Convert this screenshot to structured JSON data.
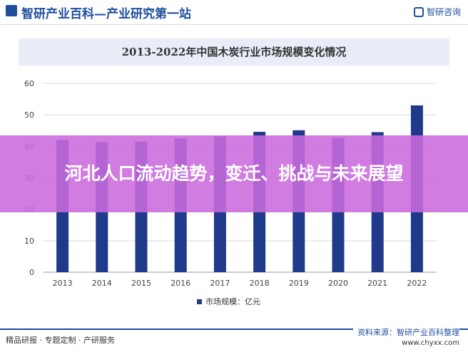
{
  "header": {
    "title": "智研产业百科—产业研究第一站",
    "brand": "智研咨询"
  },
  "overlay": {
    "headline": "河北人口流动趋势，变迁、挑战与未来展望"
  },
  "footer": {
    "left": "精品研报 · 专题定制 · 产研服务",
    "source": "资料来源：智研产业百科整理",
    "url": "www.chyxx.com"
  },
  "chart_data": {
    "type": "bar",
    "title": "2013-2022年中国木炭行业市场规模变化情况",
    "categories": [
      "2013",
      "2014",
      "2015",
      "2016",
      "2017",
      "2018",
      "2019",
      "2020",
      "2021",
      "2022"
    ],
    "series": [
      {
        "name": "市场规模：亿元",
        "values": [
          42.0,
          41.3,
          41.5,
          42.5,
          43.2,
          44.6,
          45.1,
          42.6,
          44.5,
          53.0
        ],
        "color": "#1f3a8a"
      }
    ],
    "xlabel": "",
    "ylabel": "",
    "ylim": [
      0,
      60
    ],
    "yticks": [
      0,
      10,
      20,
      30,
      40,
      50,
      60
    ],
    "grid": true,
    "legend": "bottom-center"
  }
}
